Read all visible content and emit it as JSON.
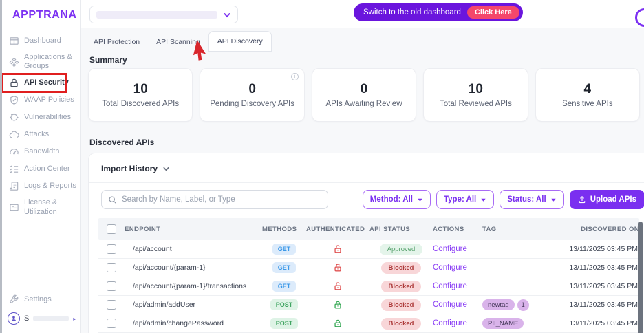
{
  "brand": "APPTRANA",
  "topbar": {
    "banner": {
      "text": "Switch to the old dashboard",
      "button": "Click Here"
    }
  },
  "sidebar": {
    "items": [
      {
        "label": "Dashboard",
        "icon": "dashboard-icon",
        "active": false,
        "annotated": false
      },
      {
        "label": "Applications & Groups",
        "icon": "applications-icon",
        "active": false,
        "annotated": false
      },
      {
        "label": "API Security",
        "icon": "lock-icon",
        "active": true,
        "annotated": true
      },
      {
        "label": "WAAP Policies",
        "icon": "shield-check-icon",
        "active": false,
        "annotated": false
      },
      {
        "label": "Vulnerabilities",
        "icon": "bug-icon",
        "active": false,
        "annotated": false
      },
      {
        "label": "Attacks",
        "icon": "cloud-alert-icon",
        "active": false,
        "annotated": false
      },
      {
        "label": "Bandwidth",
        "icon": "gauge-icon",
        "active": false,
        "annotated": false
      },
      {
        "label": "Action Center",
        "icon": "checklist-icon",
        "active": false,
        "annotated": false
      },
      {
        "label": "Logs & Reports",
        "icon": "document-icon",
        "active": false,
        "annotated": false
      },
      {
        "label": "License & Utilization",
        "icon": "license-card-icon",
        "active": false,
        "annotated": false
      }
    ],
    "settings_label": "Settings",
    "user_label": "S"
  },
  "tabs": [
    {
      "label": "API Protection",
      "active": false
    },
    {
      "label": "API Scanning",
      "active": false
    },
    {
      "label": "API Discovery",
      "active": true
    }
  ],
  "summary": {
    "title": "Summary",
    "cards": [
      {
        "value": "10",
        "label": "Total Discovered APIs",
        "info": false
      },
      {
        "value": "0",
        "label": "Pending Discovery APIs",
        "info": true
      },
      {
        "value": "0",
        "label": "APIs Awaiting Review",
        "info": false
      },
      {
        "value": "10",
        "label": "Total Reviewed APIs",
        "info": false
      },
      {
        "value": "4",
        "label": "Sensitive APIs",
        "info": false
      }
    ]
  },
  "discovered": {
    "title": "Discovered APIs",
    "import_history_label": "Import History",
    "search_placeholder": "Search by Name, Label, or Type",
    "filters": [
      {
        "label": "Method: All"
      },
      {
        "label": "Type: All"
      },
      {
        "label": "Status: All"
      }
    ],
    "upload_label": "Upload APIs",
    "table": {
      "headers": [
        "ENDPOINT",
        "METHODS",
        "AUTHENTICATED",
        "API STATUS",
        "ACTIONS",
        "TAG",
        "DISCOVERED ON"
      ],
      "rows": [
        {
          "endpoint": "/api/account",
          "method": "GET",
          "authenticated": false,
          "status": "Approved",
          "action": "Configure",
          "tags": [],
          "discovered_on": "13/11/2025 03:45 PM"
        },
        {
          "endpoint": "/api/account/{param-1}",
          "method": "GET",
          "authenticated": false,
          "status": "Blocked",
          "action": "Configure",
          "tags": [],
          "discovered_on": "13/11/2025 03:45 PM"
        },
        {
          "endpoint": "/api/account/{param-1}/transactions",
          "method": "GET",
          "authenticated": false,
          "status": "Blocked",
          "action": "Configure",
          "tags": [],
          "discovered_on": "13/11/2025 03:45 PM"
        },
        {
          "endpoint": "/api/admin/addUser",
          "method": "POST",
          "authenticated": true,
          "status": "Blocked",
          "action": "Configure",
          "tags": [
            "newtag",
            "1"
          ],
          "discovered_on": "13/11/2025 03:45 PM"
        },
        {
          "endpoint": "/api/admin/changePassword",
          "method": "POST",
          "authenticated": true,
          "status": "Blocked",
          "action": "Configure",
          "tags": [
            "PII_NAME"
          ],
          "discovered_on": "13/11/2025 03:45 PM"
        }
      ]
    }
  },
  "colors": {
    "brand_purple": "#7b2ff2",
    "banner_purple": "#6a15dd",
    "click_here_pink": "#f4476b",
    "annotation_red": "#e01f1f",
    "get_blue_bg": "#dcebfb",
    "get_blue": "#3c99e8",
    "post_green_bg": "#def3e6",
    "post_green": "#41a562",
    "approved_bg": "#e4f4ea",
    "approved_green": "#55a06b",
    "blocked_bg": "#f8d6d8",
    "blocked_red": "#ad3a3a",
    "tag_purple_bg": "#d9b3ea",
    "link_purple": "#8b3ff5",
    "filter_purple": "#7a2ff0"
  }
}
